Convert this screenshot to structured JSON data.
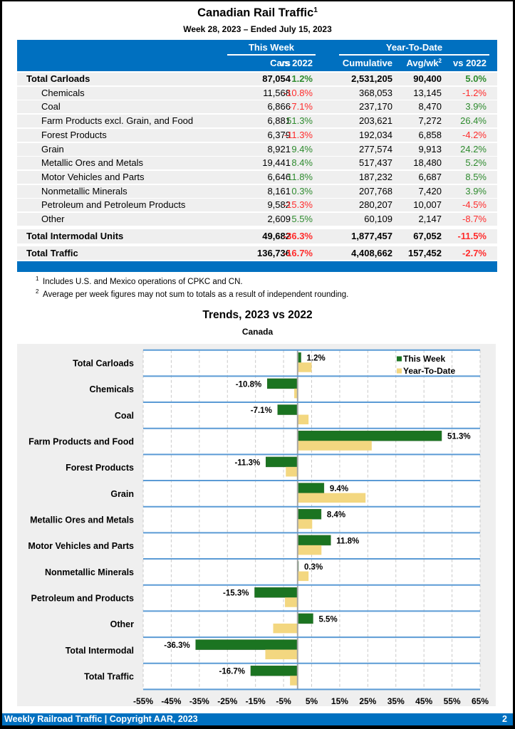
{
  "header": {
    "title": "Canadian Rail Traffic",
    "title_footnote": "1",
    "subtitle": "Week 28, 2023 – Ended July 15, 2023"
  },
  "table": {
    "groups": {
      "this_week": "This Week",
      "year_to_date": "Year-To-Date"
    },
    "columns": {
      "cars": "Cars",
      "vs_2022": "vs 2022",
      "cumulative": "Cumulative",
      "avg_wk": "Avg/wk",
      "avg_wk_footnote": "2",
      "ytd_vs_2022": "vs 2022"
    },
    "rows": [
      {
        "label": "Total Carloads",
        "type": "total",
        "cars": "87,054",
        "vs_2022": "1.2%",
        "cumulative": "2,531,205",
        "avg_wk": "90,400",
        "ytd_vs_2022": "5.0%"
      },
      {
        "label": "Chemicals",
        "type": "item",
        "cars": "11,568",
        "vs_2022": "-10.8%",
        "cumulative": "368,053",
        "avg_wk": "13,145",
        "ytd_vs_2022": "-1.2%"
      },
      {
        "label": "Coal",
        "type": "item",
        "cars": "6,866",
        "vs_2022": "-7.1%",
        "cumulative": "237,170",
        "avg_wk": "8,470",
        "ytd_vs_2022": "3.9%"
      },
      {
        "label": "Farm Products excl. Grain, and Food",
        "type": "item",
        "cars": "6,881",
        "vs_2022": "51.3%",
        "cumulative": "203,621",
        "avg_wk": "7,272",
        "ytd_vs_2022": "26.4%"
      },
      {
        "label": "Forest Products",
        "type": "item",
        "cars": "6,379",
        "vs_2022": "-11.3%",
        "cumulative": "192,034",
        "avg_wk": "6,858",
        "ytd_vs_2022": "-4.2%"
      },
      {
        "label": "Grain",
        "type": "item",
        "cars": "8,921",
        "vs_2022": "9.4%",
        "cumulative": "277,574",
        "avg_wk": "9,913",
        "ytd_vs_2022": "24.2%"
      },
      {
        "label": "Metallic Ores and Metals",
        "type": "item",
        "cars": "19,441",
        "vs_2022": "8.4%",
        "cumulative": "517,437",
        "avg_wk": "18,480",
        "ytd_vs_2022": "5.2%"
      },
      {
        "label": "Motor Vehicles and Parts",
        "type": "item",
        "cars": "6,646",
        "vs_2022": "11.8%",
        "cumulative": "187,232",
        "avg_wk": "6,687",
        "ytd_vs_2022": "8.5%"
      },
      {
        "label": "Nonmetallic Minerals",
        "type": "item",
        "cars": "8,161",
        "vs_2022": "0.3%",
        "cumulative": "207,768",
        "avg_wk": "7,420",
        "ytd_vs_2022": "3.9%"
      },
      {
        "label": "Petroleum and Petroleum Products",
        "type": "item",
        "cars": "9,582",
        "vs_2022": "-15.3%",
        "cumulative": "280,207",
        "avg_wk": "10,007",
        "ytd_vs_2022": "-4.5%"
      },
      {
        "label": "Other",
        "type": "item",
        "cars": "2,609",
        "vs_2022": "5.5%",
        "cumulative": "60,109",
        "avg_wk": "2,147",
        "ytd_vs_2022": "-8.7%"
      },
      {
        "label": "Total Intermodal Units",
        "type": "total",
        "cars": "49,682",
        "vs_2022": "-36.3%",
        "cumulative": "1,877,457",
        "avg_wk": "67,052",
        "ytd_vs_2022": "-11.5%"
      },
      {
        "label": "Total Traffic",
        "type": "total",
        "cars": "136,736",
        "vs_2022": "-16.7%",
        "cumulative": "4,408,662",
        "avg_wk": "157,452",
        "ytd_vs_2022": "-2.7%"
      }
    ]
  },
  "footnotes": [
    {
      "marker": "1",
      "text": "Includes U.S. and Mexico operations of CPKC and CN."
    },
    {
      "marker": "2",
      "text": "Average per week figures may not sum to totals as a result of independent rounding."
    }
  ],
  "chart_data": {
    "type": "bar",
    "orientation": "horizontal",
    "title": "Trends, 2023 vs 2022",
    "subtitle": "Canada",
    "xlabel": "",
    "ylabel": "",
    "categories": [
      "Total Carloads",
      "Chemicals",
      "Coal",
      "Farm Products and Food",
      "Forest Products",
      "Grain",
      "Metallic Ores and Metals",
      "Motor Vehicles and Parts",
      "Nonmetallic Minerals",
      "Petroleum and Products",
      "Other",
      "Total Intermodal",
      "Total Traffic"
    ],
    "series": [
      {
        "name": "This Week",
        "color": "#1b7421",
        "values": [
          1.2,
          -10.8,
          -7.1,
          51.3,
          -11.3,
          9.4,
          8.4,
          11.8,
          0.3,
          -15.3,
          5.5,
          -36.3,
          -16.7
        ],
        "data_labels": [
          "1.2%",
          "-10.8%",
          "-7.1%",
          "51.3%",
          "-11.3%",
          "9.4%",
          "8.4%",
          "11.8%",
          "0.3%",
          "-15.3%",
          "5.5%",
          "-36.3%",
          "-16.7%"
        ]
      },
      {
        "name": "Year-To-Date",
        "color": "#f3d780",
        "values": [
          5.0,
          -1.2,
          3.9,
          26.4,
          -4.2,
          24.2,
          5.2,
          8.5,
          3.9,
          -4.5,
          -8.7,
          -11.5,
          -2.7
        ]
      }
    ],
    "xlim": [
      -55,
      65
    ],
    "xticks": [
      -55,
      -45,
      -35,
      -25,
      -15,
      -5,
      5,
      15,
      25,
      35,
      45,
      55,
      65
    ],
    "tick_labels": [
      "-55%",
      "-45%",
      "-35%",
      "-25%",
      "-15%",
      "-5%",
      "5%",
      "15%",
      "25%",
      "35%",
      "45%",
      "55%",
      "65%"
    ],
    "grid": true,
    "legend": "top-right"
  },
  "footer": {
    "text": "Weekly Railroad Traffic | Copyright AAR, 2023",
    "page_number": "2"
  },
  "colors": {
    "brand_blue": "#0070c0",
    "row_background": "#efefef",
    "positive": "#2e8b2e",
    "negative": "#ff2b2b",
    "row_divider": "#5b9bd5",
    "zero_line": "#a6a6a6",
    "gridline": "#c9c9c9"
  }
}
